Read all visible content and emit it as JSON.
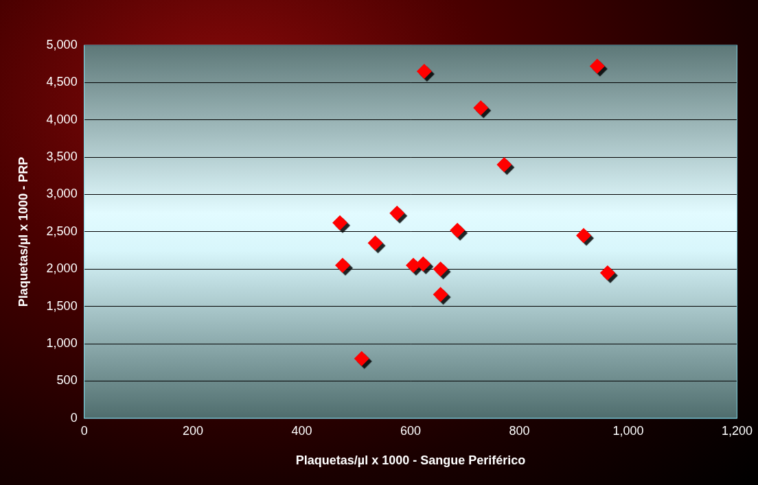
{
  "chart_data": {
    "type": "scatter",
    "x_label": "Plaquetas/µl x 1000 - Sangue Periférico",
    "y_label": "Plaquetas/µl x 1000 - PRP",
    "x": [
      470,
      475,
      510,
      535,
      575,
      605,
      623,
      625,
      655,
      655,
      686,
      729,
      772,
      918,
      943,
      962
    ],
    "values": [
      2620,
      2050,
      800,
      2350,
      2750,
      2050,
      2070,
      4650,
      2000,
      1660,
      2520,
      4160,
      3400,
      2450,
      4720,
      1950
    ],
    "color": "#ff0000",
    "marker": "diamond",
    "xlim": [
      0,
      1200
    ],
    "xticks": [
      0,
      200,
      400,
      600,
      800,
      1000,
      1200
    ],
    "ylim": [
      0,
      5000
    ],
    "yticks": [
      0,
      500,
      1000,
      1500,
      2000,
      2500,
      3000,
      3500,
      4000,
      4500,
      5000
    ],
    "grid": true
  }
}
